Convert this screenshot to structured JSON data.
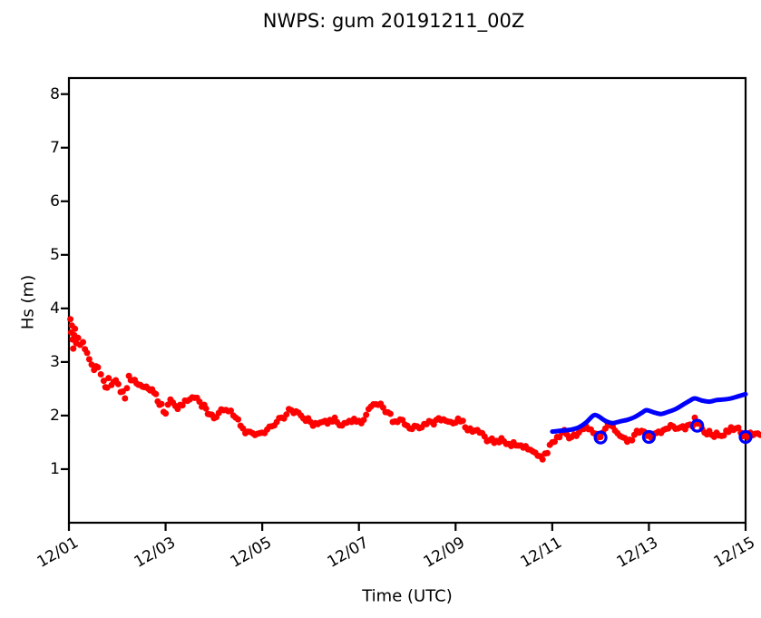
{
  "chart_data": {
    "type": "scatter",
    "title": "NWPS: gum 20191211_00Z",
    "xlabel": "Time (UTC)",
    "ylabel": "Hs (m)",
    "x_unit": "days since 12/01 00:00 UTC",
    "xlim_days": [
      0,
      14
    ],
    "ylim": [
      0,
      8.3
    ],
    "grid": false,
    "legend": "none",
    "colors": {
      "observations": "#ff0000",
      "forecast": "#0000ff",
      "axes": "#000000",
      "background": "#ffffff"
    },
    "x_ticks": [
      {
        "day": 0,
        "label": "12/01"
      },
      {
        "day": 2,
        "label": "12/03"
      },
      {
        "day": 4,
        "label": "12/05"
      },
      {
        "day": 6,
        "label": "12/07"
      },
      {
        "day": 8,
        "label": "12/09"
      },
      {
        "day": 10,
        "label": "12/11"
      },
      {
        "day": 12,
        "label": "12/13"
      },
      {
        "day": 14,
        "label": "12/15"
      }
    ],
    "y_ticks": [
      1,
      2,
      3,
      4,
      5,
      6,
      7,
      8
    ],
    "series": [
      {
        "name": "buoy-observations",
        "type": "scatter",
        "marker": "filled-dot",
        "color": "#ff0000",
        "points_day_hs": [
          [
            0.03,
            3.8
          ],
          [
            0.045,
            3.55
          ],
          [
            0.06,
            3.68
          ],
          [
            0.075,
            3.42
          ],
          [
            0.09,
            3.25
          ],
          [
            0.11,
            3.5
          ],
          [
            0.125,
            3.62
          ],
          [
            0.15,
            3.35
          ],
          [
            0.19,
            3.45
          ],
          [
            0.23,
            3.32
          ],
          [
            0.29,
            3.37
          ],
          [
            0.33,
            3.24
          ],
          [
            0.375,
            3.17
          ],
          [
            0.42,
            3.05
          ],
          [
            0.47,
            2.95
          ],
          [
            0.52,
            2.85
          ],
          [
            0.56,
            2.92
          ],
          [
            0.6,
            2.9
          ],
          [
            0.66,
            2.77
          ],
          [
            0.72,
            2.65
          ],
          [
            0.79,
            2.52
          ],
          [
            0.82,
            2.7
          ],
          [
            0.88,
            2.57
          ],
          [
            0.97,
            2.66
          ],
          [
            1.07,
            2.44
          ],
          [
            1.16,
            2.32
          ],
          [
            1.24,
            2.74
          ],
          [
            1.32,
            2.66
          ],
          [
            1.4,
            2.6
          ],
          [
            1.48,
            2.57
          ],
          [
            1.56,
            2.53
          ],
          [
            1.64,
            2.5
          ],
          [
            1.72,
            2.49
          ],
          [
            1.8,
            2.4
          ],
          [
            1.875,
            2.2
          ],
          [
            2.0,
            2.04
          ],
          [
            2.1,
            2.3
          ],
          [
            2.2,
            2.18
          ],
          [
            2.3,
            2.2
          ],
          [
            2.4,
            2.28
          ],
          [
            2.5,
            2.3
          ],
          [
            2.6,
            2.33
          ],
          [
            2.7,
            2.26
          ],
          [
            2.8,
            2.2
          ],
          [
            2.875,
            2.03
          ],
          [
            3.0,
            1.95
          ],
          [
            3.1,
            2.05
          ],
          [
            3.2,
            2.1
          ],
          [
            3.3,
            2.08
          ],
          [
            3.4,
            2.0
          ],
          [
            3.5,
            1.93
          ],
          [
            3.6,
            1.76
          ],
          [
            3.7,
            1.7
          ],
          [
            3.8,
            1.67
          ],
          [
            3.9,
            1.66
          ],
          [
            4.0,
            1.68
          ],
          [
            4.1,
            1.74
          ],
          [
            4.2,
            1.8
          ],
          [
            4.3,
            1.88
          ],
          [
            4.4,
            1.96
          ],
          [
            4.5,
            2.02
          ],
          [
            4.6,
            2.1
          ],
          [
            4.7,
            2.08
          ],
          [
            4.8,
            2.0
          ],
          [
            4.9,
            1.9
          ],
          [
            5.0,
            1.88
          ],
          [
            5.1,
            1.86
          ],
          [
            5.2,
            1.87
          ],
          [
            5.3,
            1.9
          ],
          [
            5.4,
            1.92
          ],
          [
            5.5,
            1.96
          ],
          [
            5.6,
            1.82
          ],
          [
            5.7,
            1.86
          ],
          [
            5.8,
            1.9
          ],
          [
            5.9,
            1.94
          ],
          [
            6.0,
            1.9
          ],
          [
            6.1,
            1.92
          ],
          [
            6.2,
            2.12
          ],
          [
            6.3,
            2.21
          ],
          [
            6.4,
            2.2
          ],
          [
            6.5,
            2.15
          ],
          [
            6.6,
            2.06
          ],
          [
            6.7,
            1.88
          ],
          [
            6.8,
            1.88
          ],
          [
            6.9,
            1.92
          ],
          [
            7.0,
            1.81
          ],
          [
            7.1,
            1.75
          ],
          [
            7.2,
            1.8
          ],
          [
            7.3,
            1.78
          ],
          [
            7.4,
            1.84
          ],
          [
            7.5,
            1.88
          ],
          [
            7.6,
            1.92
          ],
          [
            7.7,
            1.91
          ],
          [
            7.8,
            1.9
          ],
          [
            7.9,
            1.88
          ],
          [
            8.0,
            1.87
          ],
          [
            8.1,
            1.89
          ],
          [
            8.2,
            1.78
          ],
          [
            8.3,
            1.76
          ],
          [
            8.4,
            1.72
          ],
          [
            8.5,
            1.68
          ],
          [
            8.6,
            1.61
          ],
          [
            8.7,
            1.54
          ],
          [
            8.8,
            1.49
          ],
          [
            8.9,
            1.5
          ],
          [
            9.0,
            1.52
          ],
          [
            9.1,
            1.47
          ],
          [
            9.2,
            1.5
          ],
          [
            9.3,
            1.44
          ],
          [
            9.4,
            1.4
          ],
          [
            9.5,
            1.37
          ],
          [
            9.6,
            1.33
          ],
          [
            9.7,
            1.25
          ],
          [
            9.8,
            1.18
          ],
          [
            9.9,
            1.3
          ],
          [
            10.0,
            1.5
          ],
          [
            10.1,
            1.6
          ],
          [
            10.2,
            1.68
          ],
          [
            10.3,
            1.65
          ],
          [
            10.4,
            1.6
          ],
          [
            10.5,
            1.62
          ],
          [
            10.6,
            1.74
          ],
          [
            10.7,
            1.8
          ],
          [
            10.8,
            1.74
          ],
          [
            10.9,
            1.66
          ],
          [
            11.0,
            1.6
          ],
          [
            11.1,
            1.76
          ],
          [
            11.2,
            1.82
          ],
          [
            11.3,
            1.72
          ],
          [
            11.4,
            1.62
          ],
          [
            11.5,
            1.58
          ],
          [
            11.6,
            1.55
          ],
          [
            11.7,
            1.64
          ],
          [
            11.8,
            1.68
          ],
          [
            11.9,
            1.7
          ],
          [
            12.0,
            1.62
          ],
          [
            12.1,
            1.66
          ],
          [
            12.2,
            1.7
          ],
          [
            12.3,
            1.73
          ],
          [
            12.4,
            1.76
          ],
          [
            12.5,
            1.8
          ],
          [
            12.6,
            1.76
          ],
          [
            12.7,
            1.8
          ],
          [
            12.8,
            1.82
          ],
          [
            12.9,
            1.8
          ],
          [
            12.95,
            1.96
          ],
          [
            13.0,
            1.85
          ],
          [
            13.1,
            1.75
          ],
          [
            13.2,
            1.65
          ],
          [
            13.3,
            1.64
          ],
          [
            13.4,
            1.68
          ],
          [
            13.5,
            1.62
          ],
          [
            13.6,
            1.72
          ],
          [
            13.7,
            1.78
          ],
          [
            13.8,
            1.76
          ],
          [
            13.9,
            1.68
          ],
          [
            14.0,
            1.62
          ],
          [
            14.1,
            1.68
          ],
          [
            14.2,
            1.66
          ],
          [
            14.3,
            1.64
          ]
        ]
      },
      {
        "name": "nwps-forecast-line",
        "type": "line",
        "color": "#0000ff",
        "line_width": 5,
        "points_day_hs": [
          [
            10.0,
            1.7
          ],
          [
            10.2,
            1.72
          ],
          [
            10.4,
            1.74
          ],
          [
            10.55,
            1.78
          ],
          [
            10.7,
            1.87
          ],
          [
            10.85,
            2.0
          ],
          [
            10.95,
            1.99
          ],
          [
            11.1,
            1.9
          ],
          [
            11.25,
            1.86
          ],
          [
            11.4,
            1.89
          ],
          [
            11.55,
            1.92
          ],
          [
            11.7,
            1.97
          ],
          [
            11.85,
            2.05
          ],
          [
            11.95,
            2.1
          ],
          [
            12.1,
            2.06
          ],
          [
            12.25,
            2.03
          ],
          [
            12.4,
            2.07
          ],
          [
            12.55,
            2.12
          ],
          [
            12.7,
            2.2
          ],
          [
            12.85,
            2.28
          ],
          [
            12.95,
            2.32
          ],
          [
            13.1,
            2.28
          ],
          [
            13.25,
            2.26
          ],
          [
            13.4,
            2.29
          ],
          [
            13.55,
            2.3
          ],
          [
            13.7,
            2.32
          ],
          [
            13.85,
            2.36
          ],
          [
            14.0,
            2.4
          ]
        ]
      },
      {
        "name": "forecast-daily-markers",
        "type": "scatter",
        "marker": "open-circle",
        "color": "#0000ff",
        "points_day_hs": [
          [
            11.0,
            1.59
          ],
          [
            12.0,
            1.6
          ],
          [
            13.0,
            1.81
          ],
          [
            14.0,
            1.6
          ]
        ]
      }
    ]
  }
}
